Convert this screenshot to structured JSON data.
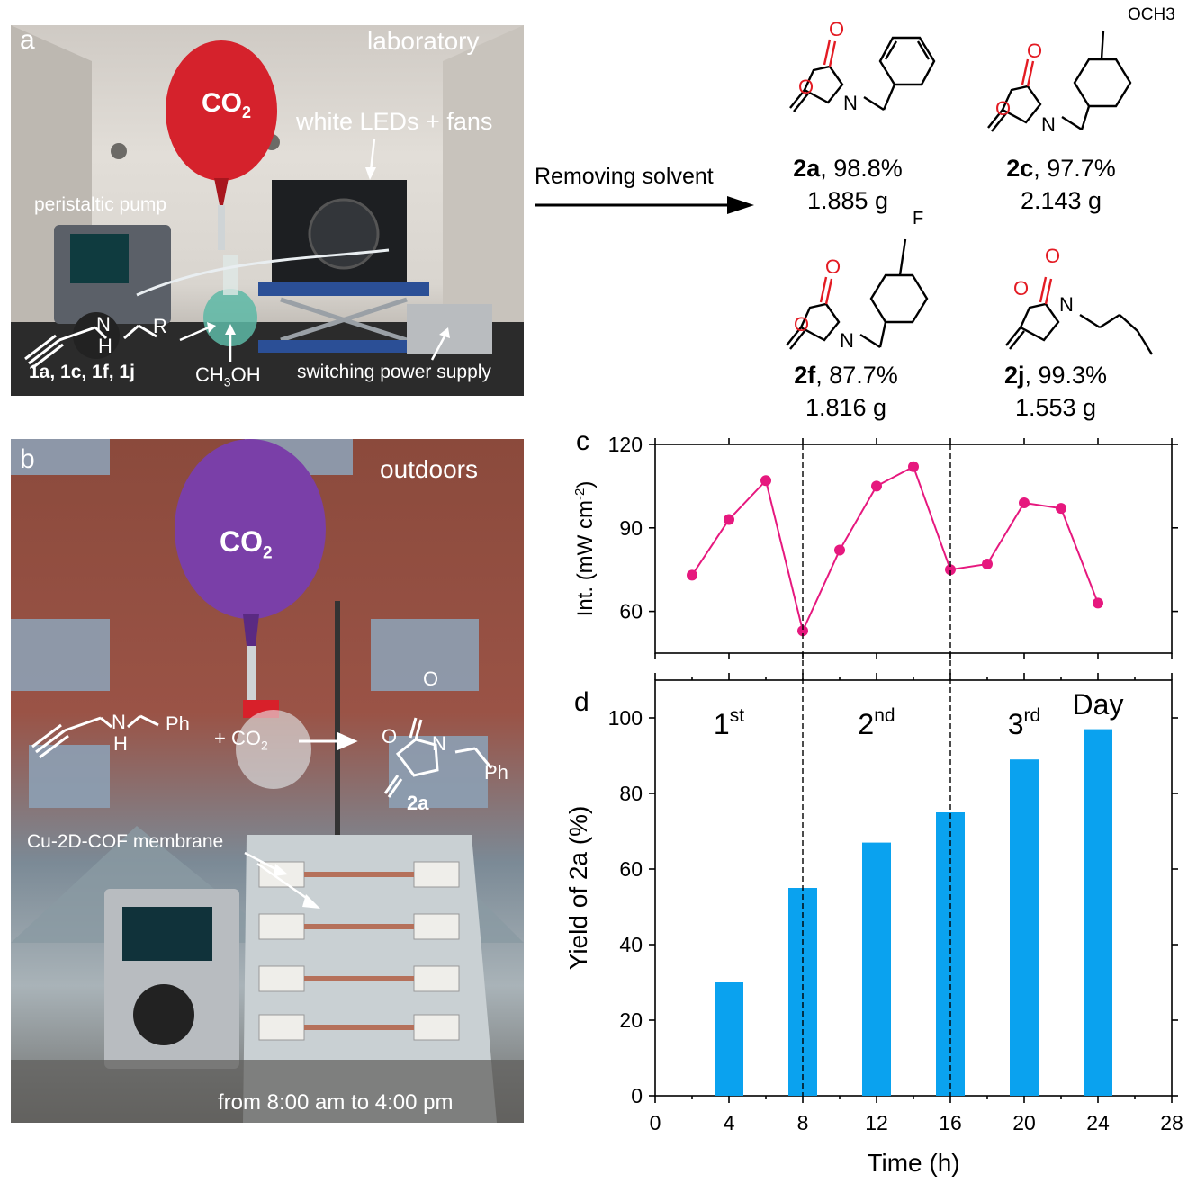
{
  "panel_a": {
    "letter": "a",
    "location": "laboratory",
    "balloon": "CO",
    "balloon_sub": "2",
    "leds": "white LEDs + fans",
    "pump": "peristaltic pump",
    "substrates": "1a, 1c, 1f, 1j",
    "solvent": "CH",
    "solvent_sub": "3",
    "solvent_tail": "OH",
    "power": "switching power supply",
    "amine_n": "N",
    "amine_h": "H",
    "amine_r": "R"
  },
  "arrow_label": "Removing solvent",
  "products": [
    {
      "id": "2a",
      "yield": ", 98.8%",
      "mass": "1.885 g",
      "sub": ""
    },
    {
      "id": "2c",
      "yield": ", 97.7%",
      "mass": "2.143 g",
      "sub": "OCH3"
    },
    {
      "id": "2f",
      "yield": ", 87.7%",
      "mass": "1.816 g",
      "sub": "F"
    },
    {
      "id": "2j",
      "yield": ", 99.3%",
      "mass": "1.553 g",
      "sub": ""
    }
  ],
  "panel_b": {
    "letter": "b",
    "location": "outdoors",
    "balloon": "CO",
    "balloon_sub": "2",
    "reactant_n": "N",
    "reactant_h": "H",
    "reactant_ph": "Ph",
    "plus_co2": "+ CO",
    "plus_co2_sub": "2",
    "product_o": "O",
    "product_n": "N",
    "product_ph": "Ph",
    "product_label": "2a",
    "membrane": "Cu-2D-COF membrane",
    "time": "from 8:00 am to 4:00 pm"
  },
  "chart_data": [
    {
      "panel": "c",
      "type": "line",
      "ylabel": "Int. (mW cm",
      "ylabel_sup": "-2",
      "ylabel_close": ")",
      "xlim": [
        0,
        28
      ],
      "ylim": [
        45,
        120
      ],
      "yticks": [
        60,
        90,
        120
      ],
      "x": [
        2,
        4,
        6,
        8,
        10,
        12,
        14,
        16,
        18,
        20,
        22,
        24
      ],
      "segments": [
        [
          0,
          1,
          2,
          3,
          4,
          5,
          6,
          7,
          8,
          9,
          10,
          11
        ]
      ],
      "y": [
        73,
        93,
        107,
        53,
        82,
        105,
        112,
        75,
        77,
        99,
        97,
        63
      ],
      "color": "#e6187e",
      "dividers": [
        8,
        16
      ]
    },
    {
      "panel": "d",
      "type": "bar",
      "xlabel": "Time (h)",
      "ylabel": "Yield of 2a (%)",
      "xlim": [
        0,
        28
      ],
      "ylim": [
        0,
        110
      ],
      "xticks": [
        0,
        4,
        8,
        12,
        16,
        20,
        24,
        28
      ],
      "yticks": [
        0,
        20,
        40,
        60,
        80,
        100
      ],
      "x": [
        4,
        8,
        12,
        16,
        20,
        24
      ],
      "values": [
        30,
        55,
        67,
        75,
        89,
        97
      ],
      "color": "#0aa2ef",
      "dividers": [
        8,
        16
      ],
      "days": [
        {
          "num": "1",
          "sup": "st"
        },
        {
          "num": "2",
          "sup": "nd"
        },
        {
          "num": "3",
          "sup": "rd"
        }
      ],
      "day_word": "Day"
    }
  ]
}
